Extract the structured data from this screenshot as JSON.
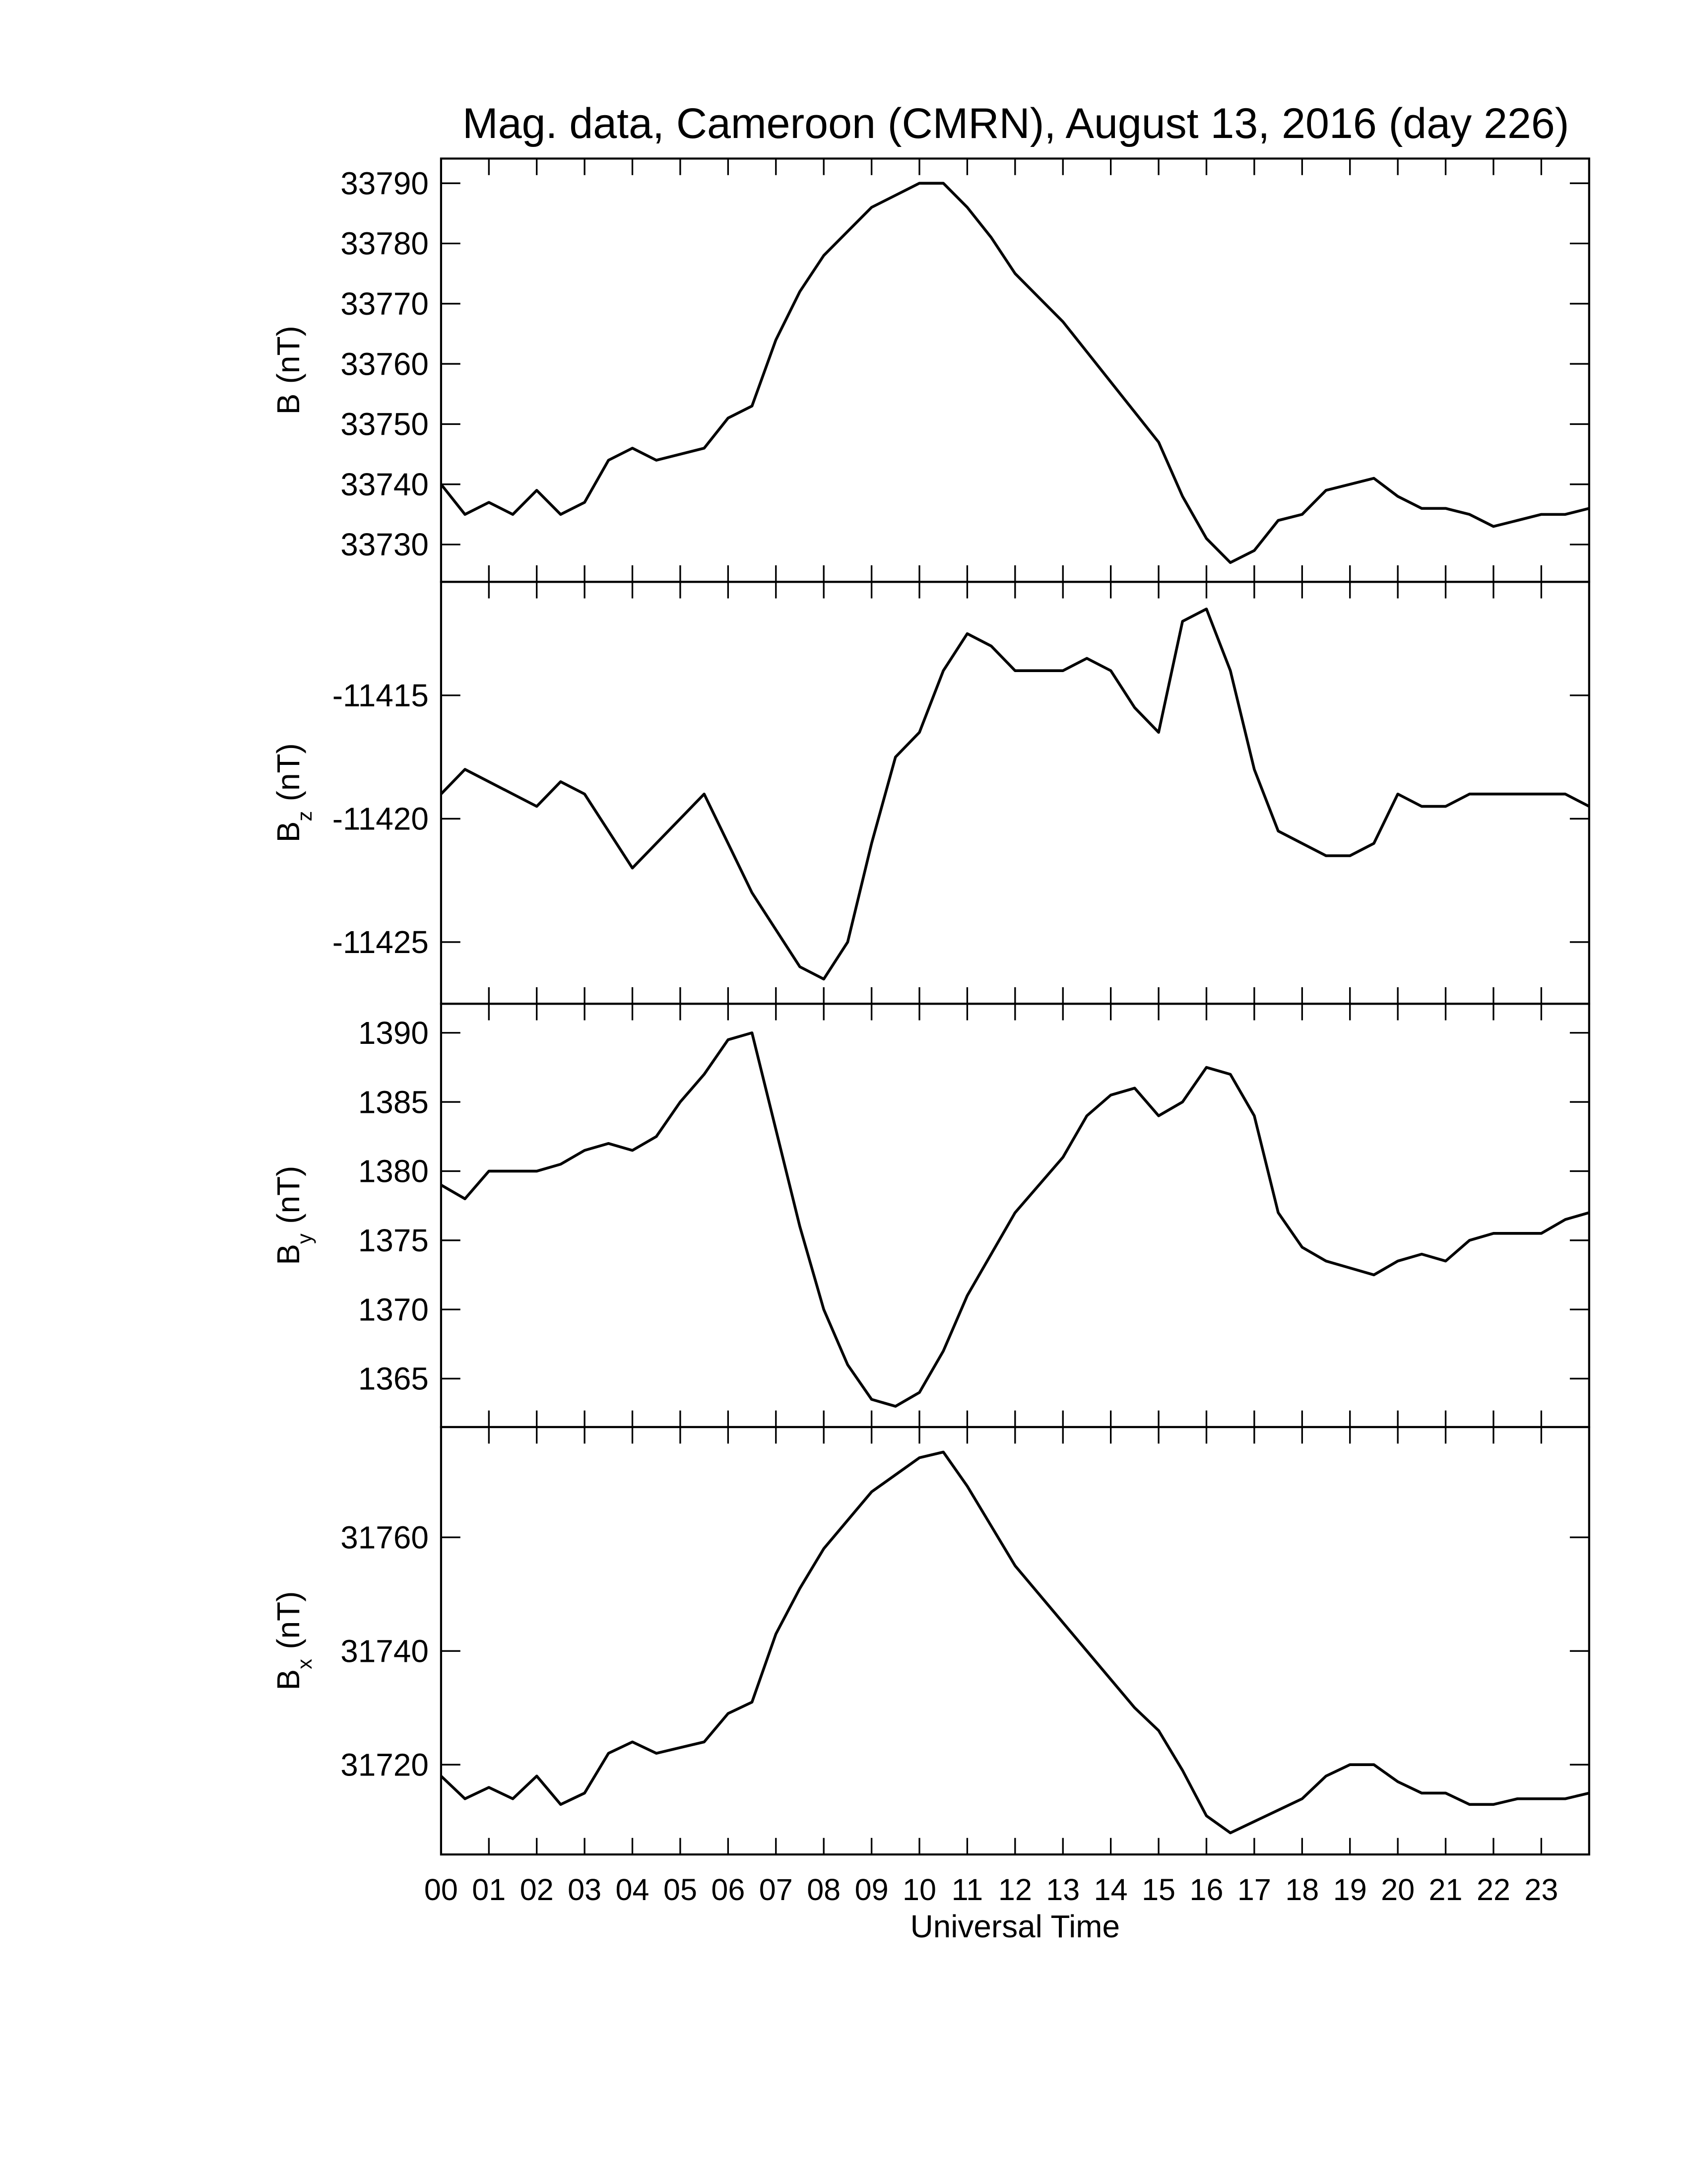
{
  "chart_data": [
    {
      "type": "line",
      "title": "Mag. data, Cameroon (CMRN), August 13, 2016 (day 226)",
      "ylabel": {
        "symbol": "B",
        "unit": "(nT)"
      },
      "x": [
        0,
        0.5,
        1,
        1.5,
        2,
        2.5,
        3,
        3.5,
        4,
        4.5,
        5,
        5.5,
        6,
        6.5,
        7,
        7.5,
        8,
        8.5,
        9,
        9.5,
        10,
        10.5,
        11,
        11.5,
        12,
        12.5,
        13,
        13.5,
        14,
        14.5,
        15,
        15.5,
        16,
        16.5,
        17,
        17.5,
        18,
        18.5,
        19,
        19.5,
        20,
        20.5,
        21,
        21.5,
        22,
        22.5,
        23,
        23.5,
        24
      ],
      "values": [
        33740,
        33735,
        33737,
        33735,
        33739,
        33735,
        33737,
        33744,
        33746,
        33744,
        33745,
        33746,
        33751,
        33753,
        33764,
        33772,
        33778,
        33782,
        33786,
        33788,
        33790,
        33790,
        33786,
        33781,
        33775,
        33771,
        33767,
        33762,
        33757,
        33752,
        33747,
        33738,
        33731,
        33727,
        33729,
        33734,
        33735,
        33739,
        33740,
        33741,
        33738,
        33736,
        33736,
        33735,
        33733,
        33734,
        33735,
        33735,
        33736
      ],
      "color": "#000000",
      "ylim": [
        33723.8,
        33794.1
      ],
      "yticks": [
        33730,
        33740,
        33750,
        33760,
        33770,
        33780,
        33790
      ]
    },
    {
      "type": "line",
      "ylabel": {
        "symbol": "B",
        "subscript": "z",
        "unit": "(nT)"
      },
      "x": [
        0,
        0.5,
        1,
        1.5,
        2,
        2.5,
        3,
        3.5,
        4,
        4.5,
        5,
        5.5,
        6,
        6.5,
        7,
        7.5,
        8,
        8.5,
        9,
        9.5,
        10,
        10.5,
        11,
        11.5,
        12,
        12.5,
        13,
        13.5,
        14,
        14.5,
        15,
        15.5,
        16,
        16.5,
        17,
        17.5,
        18,
        18.5,
        19,
        19.5,
        20,
        20.5,
        21,
        21.5,
        22,
        22.5,
        23,
        23.5,
        24
      ],
      "values": [
        -11419,
        -11418,
        -11418.5,
        -11419,
        -11419.5,
        -11418.5,
        -11419,
        -11420.5,
        -11422,
        -11421,
        -11420,
        -11419,
        -11421,
        -11423,
        -11424.5,
        -11426,
        -11426.5,
        -11425,
        -11421,
        -11417.5,
        -11416.5,
        -11414,
        -11412.5,
        -11413,
        -11414,
        -11414,
        -11414,
        -11413.5,
        -11414,
        -11415.5,
        -11416.5,
        -11412,
        -11411.5,
        -11414,
        -11418,
        -11420.5,
        -11421,
        -11421.5,
        -11421.5,
        -11421,
        -11419,
        -11419.5,
        -11419.5,
        -11419,
        -11419,
        -11419,
        -11419,
        -11419,
        -11419.5
      ],
      "color": "#000000",
      "ylim": [
        -11427.5,
        -11410.4
      ],
      "yticks": [
        -11425,
        -11420,
        -11415
      ]
    },
    {
      "type": "line",
      "ylabel": {
        "symbol": "B",
        "subscript": "y",
        "unit": "(nT)"
      },
      "x": [
        0,
        0.5,
        1,
        1.5,
        2,
        2.5,
        3,
        3.5,
        4,
        4.5,
        5,
        5.5,
        6,
        6.5,
        7,
        7.5,
        8,
        8.5,
        9,
        9.5,
        10,
        10.5,
        11,
        11.5,
        12,
        12.5,
        13,
        13.5,
        14,
        14.5,
        15,
        15.5,
        16,
        16.5,
        17,
        17.5,
        18,
        18.5,
        19,
        19.5,
        20,
        20.5,
        21,
        21.5,
        22,
        22.5,
        23,
        23.5,
        24
      ],
      "values": [
        1379,
        1378,
        1380,
        1380,
        1380,
        1380.5,
        1381.5,
        1382,
        1381.5,
        1382.5,
        1385,
        1387,
        1389.5,
        1390,
        1383,
        1376,
        1370,
        1366,
        1363.5,
        1363,
        1364,
        1367,
        1371,
        1374,
        1377,
        1379,
        1381,
        1384,
        1385.5,
        1386,
        1384,
        1385,
        1387.5,
        1387,
        1384,
        1377,
        1374.5,
        1373.5,
        1373,
        1372.5,
        1373.5,
        1374,
        1373.5,
        1375,
        1375.5,
        1375.5,
        1375.5,
        1376.5,
        1377
      ],
      "color": "#000000",
      "ylim": [
        1361.5,
        1392.1
      ],
      "yticks": [
        1365,
        1370,
        1375,
        1380,
        1385,
        1390
      ]
    },
    {
      "type": "line",
      "ylabel": {
        "symbol": "B",
        "subscript": "x",
        "unit": "(nT)"
      },
      "xlabel": "Universal Time",
      "x": [
        0,
        0.5,
        1,
        1.5,
        2,
        2.5,
        3,
        3.5,
        4,
        4.5,
        5,
        5.5,
        6,
        6.5,
        7,
        7.5,
        8,
        8.5,
        9,
        9.5,
        10,
        10.5,
        11,
        11.5,
        12,
        12.5,
        13,
        13.5,
        14,
        14.5,
        15,
        15.5,
        16,
        16.5,
        17,
        17.5,
        18,
        18.5,
        19,
        19.5,
        20,
        20.5,
        21,
        21.5,
        22,
        22.5,
        23,
        23.5,
        24
      ],
      "values": [
        31718,
        31714,
        31716,
        31714,
        31718,
        31713,
        31715,
        31722,
        31724,
        31722,
        31723,
        31724,
        31729,
        31731,
        31743,
        31751,
        31758,
        31763,
        31768,
        31771,
        31774,
        31775,
        31769,
        31762,
        31755,
        31750,
        31745,
        31740,
        31735,
        31730,
        31726,
        31719,
        31711,
        31708,
        31710,
        31712,
        31714,
        31718,
        31720,
        31720,
        31717,
        31715,
        31715,
        31713,
        31713,
        31714,
        31714,
        31714,
        31715
      ],
      "color": "#000000",
      "ylim": [
        31704.2,
        31779.4
      ],
      "yticks": [
        31720,
        31740,
        31760
      ],
      "xlim": [
        0,
        24
      ],
      "xticks": [
        {
          "value": 0,
          "label": "00"
        },
        {
          "value": 1,
          "label": "01"
        },
        {
          "value": 2,
          "label": "02"
        },
        {
          "value": 3,
          "label": "03"
        },
        {
          "value": 4,
          "label": "04"
        },
        {
          "value": 5,
          "label": "05"
        },
        {
          "value": 6,
          "label": "06"
        },
        {
          "value": 7,
          "label": "07"
        },
        {
          "value": 8,
          "label": "08"
        },
        {
          "value": 9,
          "label": "09"
        },
        {
          "value": 10,
          "label": "10"
        },
        {
          "value": 11,
          "label": "11"
        },
        {
          "value": 12,
          "label": "12"
        },
        {
          "value": 13,
          "label": "13"
        },
        {
          "value": 14,
          "label": "14"
        },
        {
          "value": 15,
          "label": "15"
        },
        {
          "value": 16,
          "label": "16"
        },
        {
          "value": 17,
          "label": "17"
        },
        {
          "value": 18,
          "label": "18"
        },
        {
          "value": 19,
          "label": "19"
        },
        {
          "value": 20,
          "label": "20"
        },
        {
          "value": 21,
          "label": "21"
        },
        {
          "value": 22,
          "label": "22"
        },
        {
          "value": 23,
          "label": "23"
        }
      ]
    }
  ]
}
